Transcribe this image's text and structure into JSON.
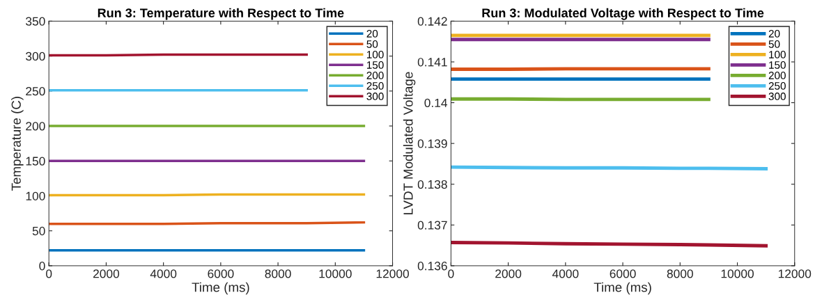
{
  "chart_data": [
    {
      "type": "line",
      "title": "Run 3: Temperature with Respect to Time",
      "xlabel": "Time (ms)",
      "ylabel": "Temperature (C)",
      "x": [
        0,
        2000,
        4000,
        6000,
        8000,
        9000,
        11000
      ],
      "xlim": [
        0,
        12000
      ],
      "xticks": [
        0,
        2000,
        4000,
        6000,
        8000,
        10000,
        12000
      ],
      "ylim": [
        0,
        350
      ],
      "yticks": [
        0,
        50,
        100,
        150,
        200,
        250,
        300,
        350
      ],
      "grid": false,
      "legend": "top right",
      "line_style": "solid",
      "series": [
        {
          "name": "20",
          "color": "#0072bd",
          "values": [
            22,
            22,
            22,
            22,
            22,
            22,
            22
          ]
        },
        {
          "name": "50",
          "color": "#d95319",
          "values": [
            60,
            60,
            60,
            61,
            61,
            61,
            62
          ]
        },
        {
          "name": "100",
          "color": "#edb120",
          "values": [
            101,
            101,
            101,
            102,
            102,
            102,
            102
          ]
        },
        {
          "name": "150",
          "color": "#7e2f8e",
          "values": [
            150,
            150,
            150,
            150,
            150,
            150,
            150
          ]
        },
        {
          "name": "200",
          "color": "#77ac30",
          "values": [
            200,
            200,
            200,
            200,
            200,
            200,
            200
          ]
        },
        {
          "name": "250",
          "color": "#4dbeee",
          "values": [
            251,
            251,
            251,
            251,
            251,
            251,
            null
          ]
        },
        {
          "name": "300",
          "color": "#a2142f",
          "values": [
            301,
            301,
            302,
            302,
            302,
            302,
            null
          ]
        }
      ]
    },
    {
      "type": "line",
      "title": "Run 3: Modulated Voltage with Respect to Time",
      "xlabel": "Time (ms)",
      "ylabel": "LVDT Modulated Voltage",
      "x": [
        0,
        2000,
        4000,
        6000,
        8000,
        9000,
        11000
      ],
      "xlim": [
        0,
        12000
      ],
      "xticks": [
        0,
        2000,
        4000,
        6000,
        8000,
        10000,
        12000
      ],
      "ylim": [
        0.136,
        0.142
      ],
      "yticks": [
        0.136,
        0.137,
        0.138,
        0.139,
        0.14,
        0.141,
        0.142
      ],
      "grid": false,
      "legend": "top right",
      "line_style": "solid",
      "series": [
        {
          "name": "20",
          "color": "#0072bd",
          "values": [
            0.14058,
            0.14058,
            0.14058,
            0.14058,
            0.14058,
            0.14058,
            null
          ]
        },
        {
          "name": "50",
          "color": "#d95319",
          "values": [
            0.14082,
            0.14082,
            0.14083,
            0.14083,
            0.14083,
            0.14083,
            null
          ]
        },
        {
          "name": "100",
          "color": "#edb120",
          "values": [
            0.14165,
            0.14165,
            0.14165,
            0.14165,
            0.14165,
            0.14165,
            null
          ]
        },
        {
          "name": "150",
          "color": "#7e2f8e",
          "values": [
            0.14155,
            0.14155,
            0.14155,
            0.14155,
            0.14155,
            0.14155,
            null
          ]
        },
        {
          "name": "200",
          "color": "#77ac30",
          "values": [
            0.14009,
            0.14009,
            0.14008,
            0.14008,
            0.14008,
            0.14008,
            null
          ]
        },
        {
          "name": "250",
          "color": "#4dbeee",
          "values": [
            0.13842,
            0.13841,
            0.1384,
            0.1384,
            0.13839,
            0.13839,
            0.13838
          ]
        },
        {
          "name": "300",
          "color": "#a2142f",
          "values": [
            0.13657,
            0.13656,
            0.13654,
            0.13653,
            0.13652,
            0.13651,
            0.13649
          ]
        }
      ]
    }
  ]
}
